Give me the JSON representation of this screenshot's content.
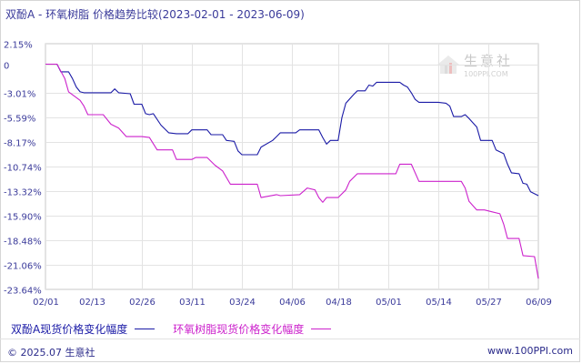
{
  "title": "双酚A - 环氧树脂 价格趋势比较(2023-02-01 - 2023-06-09)",
  "watermark": {
    "name": "生意社",
    "url": "100PPI.COM"
  },
  "footer": {
    "copyright": "© 2025.07 生意社",
    "site": "www.100PPI.com"
  },
  "chart_data": {
    "type": "line",
    "title": "双酚A - 环氧树脂 价格趋势比较(2023-02-01 - 2023-06-09)",
    "y_tick_labels": [
      "2.15%",
      "0",
      "-3.01%",
      "-5.59%",
      "-8.17%",
      "-10.74%",
      "-13.32%",
      "-15.90%",
      "-18.48%",
      "-21.06%",
      "-23.64%"
    ],
    "y_ticks": [
      2.15,
      0,
      -3.01,
      -5.59,
      -8.17,
      -10.74,
      -13.32,
      -15.9,
      -18.48,
      -21.06,
      -23.64
    ],
    "ylim": [
      -23.64,
      2.15
    ],
    "x_tick_labels": [
      "02/01",
      "02/13",
      "02/26",
      "03/11",
      "03/24",
      "04/06",
      "04/18",
      "05/01",
      "05/14",
      "05/27",
      "06/09"
    ],
    "x_ticks": [
      "2023-02-01",
      "2023-02-13",
      "2023-02-26",
      "2023-03-11",
      "2023-03-24",
      "2023-04-06",
      "2023-04-18",
      "2023-05-01",
      "2023-05-14",
      "2023-05-27",
      "2023-06-09"
    ],
    "xlim": [
      "2023-02-01",
      "2023-06-09"
    ],
    "grid": true,
    "legend_position": "bottom",
    "series": [
      {
        "name": "双酚A现货价格变化幅度",
        "color": "#1a1aa6",
        "points": [
          [
            "2023-02-01",
            0
          ],
          [
            "2023-02-04",
            0
          ],
          [
            "2023-02-05",
            -0.8
          ],
          [
            "2023-02-07",
            -0.8
          ],
          [
            "2023-02-08",
            -1.5
          ],
          [
            "2023-02-09",
            -2.4
          ],
          [
            "2023-02-10",
            -2.9
          ],
          [
            "2023-02-11",
            -3.0
          ],
          [
            "2023-02-18",
            -3.0
          ],
          [
            "2023-02-19",
            -2.6
          ],
          [
            "2023-02-20",
            -3.0
          ],
          [
            "2023-02-23",
            -3.1
          ],
          [
            "2023-02-24",
            -4.2
          ],
          [
            "2023-02-26",
            -4.2
          ],
          [
            "2023-02-27",
            -5.2
          ],
          [
            "2023-02-28",
            -5.3
          ],
          [
            "2023-03-01",
            -5.2
          ],
          [
            "2023-03-03",
            -6.4
          ],
          [
            "2023-03-05",
            -7.2
          ],
          [
            "2023-03-07",
            -7.3
          ],
          [
            "2023-03-10",
            -7.3
          ],
          [
            "2023-03-11",
            -6.9
          ],
          [
            "2023-03-15",
            -6.9
          ],
          [
            "2023-03-16",
            -7.4
          ],
          [
            "2023-03-19",
            -7.4
          ],
          [
            "2023-03-20",
            -8.0
          ],
          [
            "2023-03-22",
            -8.1
          ],
          [
            "2023-03-23",
            -9.1
          ],
          [
            "2023-03-24",
            -9.5
          ],
          [
            "2023-03-28",
            -9.5
          ],
          [
            "2023-03-29",
            -8.7
          ],
          [
            "2023-04-01",
            -8.0
          ],
          [
            "2023-04-02",
            -7.6
          ],
          [
            "2023-04-03",
            -7.2
          ],
          [
            "2023-04-07",
            -7.2
          ],
          [
            "2023-04-08",
            -6.9
          ],
          [
            "2023-04-13",
            -6.9
          ],
          [
            "2023-04-14",
            -7.7
          ],
          [
            "2023-04-15",
            -8.4
          ],
          [
            "2023-04-16",
            -8.0
          ],
          [
            "2023-04-18",
            -8.0
          ],
          [
            "2023-04-19",
            -5.6
          ],
          [
            "2023-04-20",
            -4.1
          ],
          [
            "2023-04-22",
            -3.2
          ],
          [
            "2023-04-23",
            -2.8
          ],
          [
            "2023-04-25",
            -2.8
          ],
          [
            "2023-04-26",
            -2.2
          ],
          [
            "2023-04-27",
            -2.3
          ],
          [
            "2023-04-28",
            -1.9
          ],
          [
            "2023-05-04",
            -1.9
          ],
          [
            "2023-05-05",
            -2.2
          ],
          [
            "2023-05-06",
            -2.4
          ],
          [
            "2023-05-07",
            -3.0
          ],
          [
            "2023-05-08",
            -3.7
          ],
          [
            "2023-05-09",
            -4.0
          ],
          [
            "2023-05-14",
            -4.0
          ],
          [
            "2023-05-16",
            -4.1
          ],
          [
            "2023-05-17",
            -4.4
          ],
          [
            "2023-05-18",
            -5.5
          ],
          [
            "2023-05-20",
            -5.5
          ],
          [
            "2023-05-21",
            -5.3
          ],
          [
            "2023-05-22",
            -5.7
          ],
          [
            "2023-05-24",
            -6.6
          ],
          [
            "2023-05-25",
            -8.0
          ],
          [
            "2023-05-28",
            -8.0
          ],
          [
            "2023-05-29",
            -9.0
          ],
          [
            "2023-05-31",
            -9.4
          ],
          [
            "2023-06-01",
            -10.5
          ],
          [
            "2023-06-02",
            -11.4
          ],
          [
            "2023-06-04",
            -11.5
          ],
          [
            "2023-06-05",
            -12.5
          ],
          [
            "2023-06-06",
            -12.6
          ],
          [
            "2023-06-07",
            -13.4
          ],
          [
            "2023-06-09",
            -13.8
          ]
        ]
      },
      {
        "name": "环氧树脂现货价格变化幅度",
        "color": "#cc22cc",
        "points": [
          [
            "2023-02-01",
            0
          ],
          [
            "2023-02-04",
            0
          ],
          [
            "2023-02-06",
            -1.5
          ],
          [
            "2023-02-07",
            -2.9
          ],
          [
            "2023-02-10",
            -3.8
          ],
          [
            "2023-02-11",
            -4.4
          ],
          [
            "2023-02-12",
            -5.3
          ],
          [
            "2023-02-16",
            -5.3
          ],
          [
            "2023-02-18",
            -6.3
          ],
          [
            "2023-02-20",
            -6.7
          ],
          [
            "2023-02-22",
            -7.6
          ],
          [
            "2023-02-26",
            -7.6
          ],
          [
            "2023-02-28",
            -7.7
          ],
          [
            "2023-03-02",
            -9.0
          ],
          [
            "2023-03-06",
            -9.0
          ],
          [
            "2023-03-07",
            -10.0
          ],
          [
            "2023-03-11",
            -10.0
          ],
          [
            "2023-03-12",
            -9.8
          ],
          [
            "2023-03-15",
            -9.8
          ],
          [
            "2023-03-17",
            -10.6
          ],
          [
            "2023-03-19",
            -11.2
          ],
          [
            "2023-03-21",
            -12.6
          ],
          [
            "2023-03-28",
            -12.6
          ],
          [
            "2023-03-29",
            -14.0
          ],
          [
            "2023-04-02",
            -13.7
          ],
          [
            "2023-04-03",
            -13.8
          ],
          [
            "2023-04-08",
            -13.7
          ],
          [
            "2023-04-10",
            -13.0
          ],
          [
            "2023-04-12",
            -13.2
          ],
          [
            "2023-04-13",
            -14.0
          ],
          [
            "2023-04-14",
            -14.5
          ],
          [
            "2023-04-15",
            -14.0
          ],
          [
            "2023-04-18",
            -14.0
          ],
          [
            "2023-04-20",
            -13.2
          ],
          [
            "2023-04-21",
            -12.3
          ],
          [
            "2023-04-23",
            -11.5
          ],
          [
            "2023-05-03",
            -11.5
          ],
          [
            "2023-05-04",
            -10.5
          ],
          [
            "2023-05-07",
            -10.5
          ],
          [
            "2023-05-09",
            -12.3
          ],
          [
            "2023-05-20",
            -12.3
          ],
          [
            "2023-05-21",
            -13.0
          ],
          [
            "2023-05-22",
            -14.4
          ],
          [
            "2023-05-24",
            -15.3
          ],
          [
            "2023-05-26",
            -15.3
          ],
          [
            "2023-05-28",
            -15.5
          ],
          [
            "2023-05-30",
            -15.7
          ],
          [
            "2023-05-31",
            -16.8
          ],
          [
            "2023-06-01",
            -18.3
          ],
          [
            "2023-06-04",
            -18.3
          ],
          [
            "2023-06-05",
            -20.1
          ],
          [
            "2023-06-08",
            -20.2
          ],
          [
            "2023-06-09",
            -22.5
          ]
        ]
      }
    ]
  }
}
